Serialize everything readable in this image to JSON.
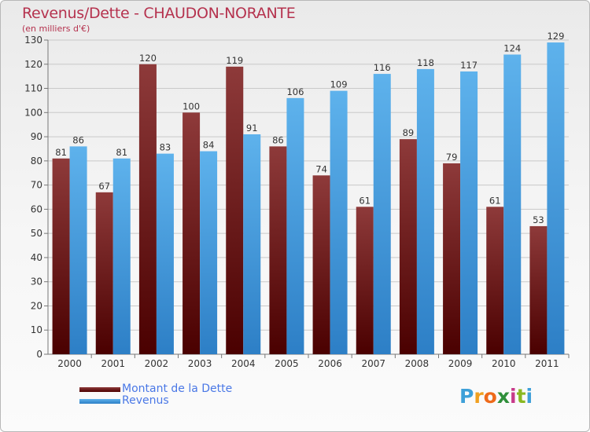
{
  "title": "Revenus/Dette - CHAUDON-NORANTE",
  "subtitle": "(en milliers d'€)",
  "logo": {
    "letters": [
      "P",
      "r",
      "o",
      "x",
      "i",
      "t",
      "i"
    ],
    "colors": [
      "#3ea0d8",
      "#f0a020",
      "#ee6a1a",
      "#2f8f3a",
      "#c83a8a",
      "#8ab822",
      "#3ea0d8"
    ]
  },
  "colors": {
    "debt_top": "#8e3a3a",
    "debt_bottom": "#4a0000",
    "revenue_top": "#5eb2ec",
    "revenue_bottom": "#2d7fc6",
    "title": "#b5324e",
    "legend_text": "#4a78e6"
  },
  "chart_data": {
    "type": "bar",
    "categories": [
      "2000",
      "2001",
      "2002",
      "2003",
      "2004",
      "2005",
      "2006",
      "2007",
      "2008",
      "2009",
      "2010",
      "2011"
    ],
    "series": [
      {
        "name": "Montant de la Dette",
        "values": [
          81,
          67,
          120,
          100,
          119,
          86,
          74,
          61,
          89,
          79,
          61,
          53
        ]
      },
      {
        "name": "Revenus",
        "values": [
          86,
          81,
          83,
          84,
          91,
          106,
          109,
          116,
          118,
          117,
          124,
          129
        ]
      }
    ],
    "ylim": [
      0,
      130
    ],
    "yticks": [
      0,
      10,
      20,
      30,
      40,
      50,
      60,
      70,
      80,
      90,
      100,
      110,
      120,
      130
    ],
    "grid": true,
    "legend_position": "bottom-left"
  }
}
